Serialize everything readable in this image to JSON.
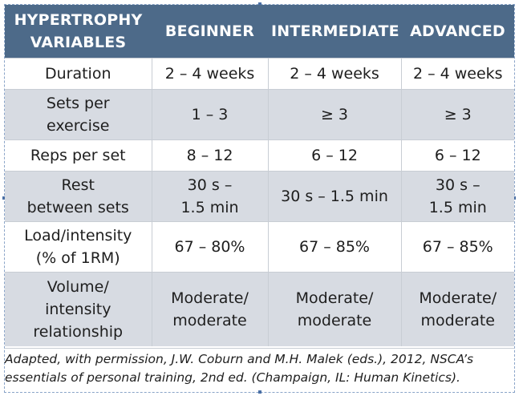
{
  "table": {
    "headers": [
      "HYPERTROPHY\nVARIABLES",
      "BEGINNER",
      "INTERMEDIATE",
      "ADVANCED"
    ],
    "rows": [
      [
        "Duration",
        "2 – 4 weeks",
        "2 – 4 weeks",
        "2 – 4 weeks"
      ],
      [
        "Sets per\nexercise",
        "1 – 3",
        "≥ 3",
        "≥ 3"
      ],
      [
        "Reps per set",
        "8 – 12",
        "6 – 12",
        "6 – 12"
      ],
      [
        "Rest\nbetween sets",
        "30 s –\n1.5 min",
        "30 s – 1.5 min",
        "30 s –\n1.5 min"
      ],
      [
        "Load/intensity\n(% of 1RM)",
        "67 – 80%",
        "67 – 85%",
        "67 – 85%"
      ],
      [
        "Volume/\nintensity\nrelationship",
        "Moderate/\nmoderate",
        "Moderate/\nmoderate",
        "Moderate/\nmoderate"
      ]
    ]
  },
  "caption": "Adapted, with permission, J.W. Coburn and M.H. Malek (eds.), 2012, NSCA’s\nessentials of personal training, 2nd ed. (Champaign, IL: Human Kinetics).",
  "colors": {
    "header_bg": "#4d6a89",
    "header_text": "#ffffff",
    "stripe_bg": "#d7dbe2",
    "row_bg": "#ffffff",
    "text": "#1e1e1e"
  }
}
